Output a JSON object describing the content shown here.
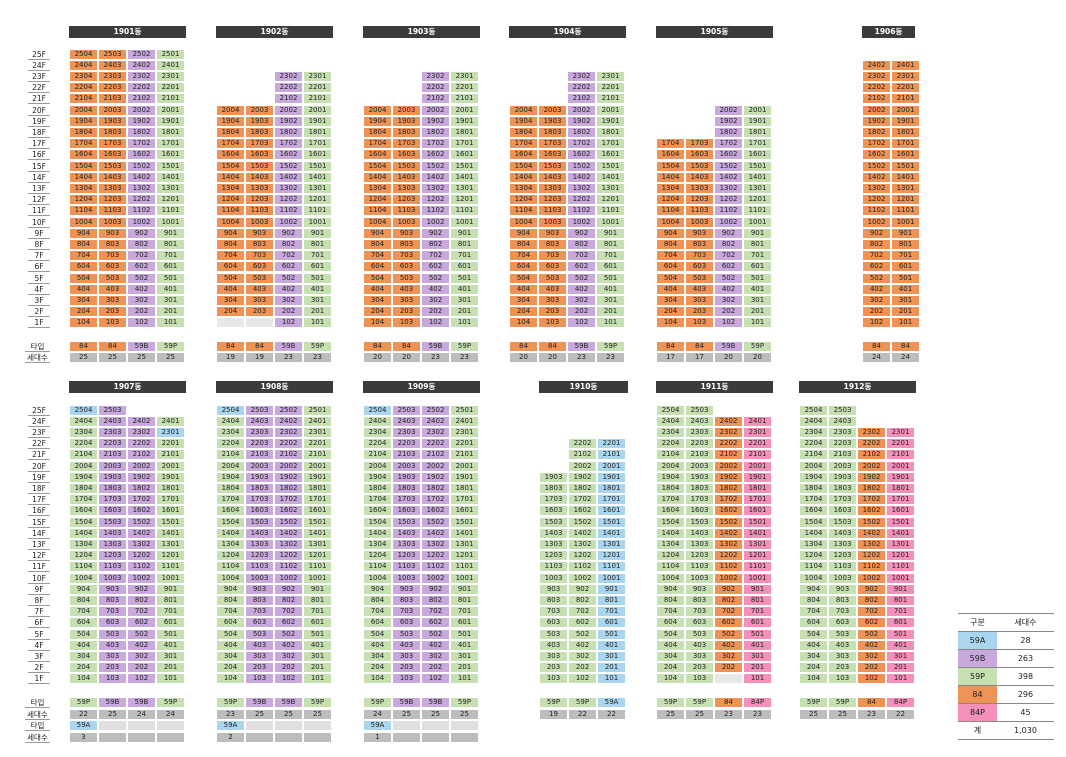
{
  "buildings": [
    {
      "name": "1901동",
      "top_floor": 25,
      "sets": [
        [
          1,
          25,
          "84"
        ],
        [
          1,
          25,
          "84"
        ],
        [
          1,
          25,
          "59B"
        ],
        [
          1,
          25,
          "59P"
        ]
      ],
      "types": [
        "84",
        "84",
        "59B",
        "59P"
      ],
      "households": [
        "25",
        "25",
        "25",
        "25"
      ]
    },
    {
      "name": "1902동",
      "top_floor": 20,
      "sets": [
        [
          2,
          20,
          "84"
        ],
        [
          2,
          20,
          "84"
        ],
        [
          1,
          23,
          "59B"
        ],
        [
          1,
          23,
          "59P"
        ]
      ],
      "types": [
        "84",
        "84",
        "59B",
        "59P"
      ],
      "households": [
        "19",
        "19",
        "23",
        "23"
      ]
    },
    {
      "name": "1903동",
      "top_floor": 20,
      "sets": [
        [
          1,
          20,
          "84"
        ],
        [
          1,
          20,
          "84"
        ],
        [
          1,
          23,
          "59B"
        ],
        [
          1,
          23,
          "59P"
        ]
      ],
      "types": [
        "84",
        "84",
        "59B",
        "59P"
      ],
      "households": [
        "20",
        "20",
        "23",
        "23"
      ]
    },
    {
      "name": "1904동",
      "top_floor": 20,
      "sets": [
        [
          1,
          20,
          "84"
        ],
        [
          1,
          20,
          "84"
        ],
        [
          1,
          23,
          "59B"
        ],
        [
          1,
          23,
          "59P"
        ]
      ],
      "types": [
        "84",
        "84",
        "59B",
        "59P"
      ],
      "households": [
        "20",
        "20",
        "23",
        "23"
      ]
    },
    {
      "name": "1905동",
      "top_floor": 17,
      "sets": [
        [
          1,
          17,
          "84"
        ],
        [
          1,
          17,
          "84"
        ],
        [
          1,
          20,
          "59B"
        ],
        [
          1,
          20,
          "59P"
        ]
      ],
      "types": [
        "84",
        "84",
        "59B",
        "59P"
      ],
      "households": [
        "17",
        "17",
        "20",
        "20"
      ]
    },
    {
      "name": "1906동",
      "top_floor": 24,
      "sets": [
        [
          1,
          24,
          "84"
        ],
        [
          1,
          24,
          "84"
        ]
      ],
      "types": [
        "84",
        "84"
      ],
      "households": [
        "24",
        "24"
      ]
    },
    {
      "name": "1907동",
      "top_floor": 25,
      "sets": [
        [
          1,
          25,
          "59P",
          [
            [
              25,
              "59A"
            ]
          ]
        ],
        [
          1,
          25,
          "59B"
        ],
        [
          1,
          24,
          "59B"
        ],
        [
          1,
          24,
          "59P",
          [
            [
              23,
              "59A"
            ]
          ]
        ]
      ],
      "types": [
        "59P",
        "59B",
        "59B",
        "59P"
      ],
      "households": [
        "22",
        "25",
        "24",
        "24"
      ],
      "extra_types": [
        "59A",
        "",
        "",
        ""
      ],
      "extra_households": [
        "3",
        "",
        "",
        ""
      ]
    },
    {
      "name": "1908동",
      "top_floor": 25,
      "sets": [
        [
          1,
          25,
          "59P",
          [
            [
              25,
              "59A"
            ]
          ]
        ],
        [
          1,
          25,
          "59B"
        ],
        [
          1,
          25,
          "59B"
        ],
        [
          1,
          25,
          "59P"
        ]
      ],
      "types": [
        "59P",
        "59B",
        "59B",
        "59P"
      ],
      "households": [
        "23",
        "25",
        "25",
        "25"
      ],
      "extra_types": [
        "59A",
        "",
        "",
        ""
      ],
      "extra_households": [
        "2",
        "",
        "",
        ""
      ]
    },
    {
      "name": "1909동",
      "top_floor": 25,
      "sets": [
        [
          1,
          25,
          "59P",
          [
            [
              25,
              "59A"
            ]
          ]
        ],
        [
          1,
          25,
          "59B"
        ],
        [
          1,
          25,
          "59B"
        ],
        [
          1,
          25,
          "59P"
        ]
      ],
      "types": [
        "59P",
        "59B",
        "59B",
        "59P"
      ],
      "households": [
        "24",
        "25",
        "25",
        "25"
      ],
      "extra_types": [
        "59A",
        "",
        "",
        ""
      ],
      "extra_households": [
        "1",
        "",
        "",
        ""
      ]
    },
    {
      "name": "1910동",
      "top_floor": 22,
      "sets": [
        [
          1,
          19,
          "59P"
        ],
        [
          1,
          22,
          "59P"
        ],
        [
          1,
          22,
          "59A"
        ]
      ],
      "types": [
        "59P",
        "59P",
        "59A"
      ],
      "households": [
        "19",
        "22",
        "22"
      ]
    },
    {
      "name": "1911동",
      "top_floor": 25,
      "sets": [
        [
          1,
          25,
          "59P"
        ],
        [
          1,
          25,
          "59P"
        ],
        [
          2,
          24,
          "84"
        ],
        [
          1,
          24,
          "84P"
        ]
      ],
      "types": [
        "59P",
        "59P",
        "84",
        "84P"
      ],
      "households": [
        "25",
        "25",
        "23",
        "23"
      ]
    },
    {
      "name": "1912동",
      "top_floor": 25,
      "sets": [
        [
          1,
          25,
          "59P"
        ],
        [
          1,
          25,
          "59P"
        ],
        [
          1,
          23,
          "84"
        ],
        [
          1,
          23,
          "84P"
        ]
      ],
      "types": [
        "59P",
        "59P",
        "84",
        "84P"
      ],
      "households": [
        "25",
        "25",
        "23",
        "22"
      ]
    }
  ],
  "labels": {
    "type": "타입",
    "households": "세대수"
  },
  "colors": {
    "59A": "#a9d6ee",
    "59B": "#c9a8dc",
    "59P": "#c6e0b2",
    "84": "#ee9355",
    "84P": "#f590ba"
  },
  "legend": {
    "header": [
      "구분",
      "세대수"
    ],
    "rows": [
      {
        "type": "59A",
        "count": "28"
      },
      {
        "type": "59B",
        "count": "263"
      },
      {
        "type": "59P",
        "count": "398"
      },
      {
        "type": "84",
        "count": "296"
      },
      {
        "type": "84P",
        "count": "45"
      }
    ],
    "total_label": "계",
    "total": "1,030"
  }
}
